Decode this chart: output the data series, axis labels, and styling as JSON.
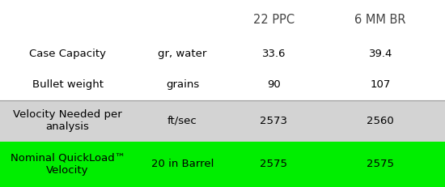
{
  "col_headers": [
    "",
    "",
    "22 PPC",
    "6 MM BR"
  ],
  "rows": [
    {
      "label": "Case Capacity",
      "unit": "gr, water",
      "val1": "33.6",
      "val2": "39.4",
      "bg": "#ffffff",
      "fg": "#000000",
      "bold": false,
      "border_top": false
    },
    {
      "label": "Bullet weight",
      "unit": "grains",
      "val1": "90",
      "val2": "107",
      "bg": "#ffffff",
      "fg": "#000000",
      "bold": false,
      "border_top": false
    },
    {
      "label": "Velocity Needed per\nanalysis",
      "unit": "ft/sec",
      "val1": "2573",
      "val2": "2560",
      "bg": "#d3d3d3",
      "fg": "#000000",
      "bold": false,
      "border_top": true
    },
    {
      "label": "Nominal QuickLoad™\nVelocity",
      "unit": "20 in Barrel",
      "val1": "2575",
      "val2": "2575",
      "bg": "#00ee00",
      "fg": "#000000",
      "bold": false,
      "border_top": false
    }
  ],
  "figsize": [
    5.5,
    2.31
  ],
  "dpi": 100,
  "font_size": 9.5,
  "header_font_size": 10.5,
  "text_color": "#444444",
  "border_color": "#999999"
}
